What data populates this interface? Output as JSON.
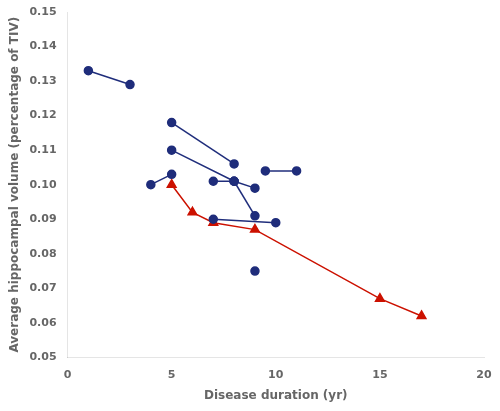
{
  "chart_data": {
    "type": "line",
    "xlabel": "Disease duration (yr)",
    "ylabel": "Average hippocampal volume (percentage of TIV)",
    "xlim": [
      0,
      20
    ],
    "ylim": [
      0.05,
      0.15
    ],
    "xticks": [
      0,
      5,
      10,
      15,
      20
    ],
    "yticks": [
      0.05,
      0.06,
      0.07,
      0.08,
      0.09,
      {
        "value": 0.1,
        "label": "0.10"
      },
      0.11,
      0.12,
      0.13,
      0.14,
      0.15
    ],
    "grid": false,
    "series": [
      {
        "color": "#1f2d7b",
        "marker": "circle",
        "x": [
          1,
          3
        ],
        "values": [
          0.133,
          0.129
        ]
      },
      {
        "color": "#1f2d7b",
        "marker": "circle",
        "x": [
          4,
          5
        ],
        "values": [
          0.1,
          0.103
        ]
      },
      {
        "color": "#1f2d7b",
        "marker": "circle",
        "x": [
          5,
          8
        ],
        "values": [
          0.118,
          0.106
        ]
      },
      {
        "color": "#1f2d7b",
        "marker": "circle",
        "x": [
          5,
          8,
          9
        ],
        "values": [
          0.11,
          0.101,
          0.099
        ]
      },
      {
        "color": "#1f2d7b",
        "marker": "circle",
        "x": [
          7,
          8
        ],
        "values": [
          0.101,
          0.101
        ]
      },
      {
        "color": "#1f2d7b",
        "marker": "circle",
        "x": [
          7,
          10
        ],
        "values": [
          0.09,
          0.089
        ]
      },
      {
        "color": "#1f2d7b",
        "marker": "circle",
        "x": [
          8,
          9
        ],
        "values": [
          0.101,
          0.091
        ]
      },
      {
        "color": "#1f2d7b",
        "marker": "circle",
        "x": [
          9.5,
          11
        ],
        "values": [
          0.104,
          0.104
        ]
      },
      {
        "color": "#1f2d7b",
        "marker": "circle",
        "x": [
          9
        ],
        "values": [
          0.075
        ]
      },
      {
        "color": "#cc1100",
        "marker": "triangle",
        "x": [
          5,
          6,
          7,
          9,
          15,
          17
        ],
        "values": [
          0.1,
          0.092,
          0.089,
          0.087,
          0.067,
          0.062
        ]
      }
    ]
  }
}
